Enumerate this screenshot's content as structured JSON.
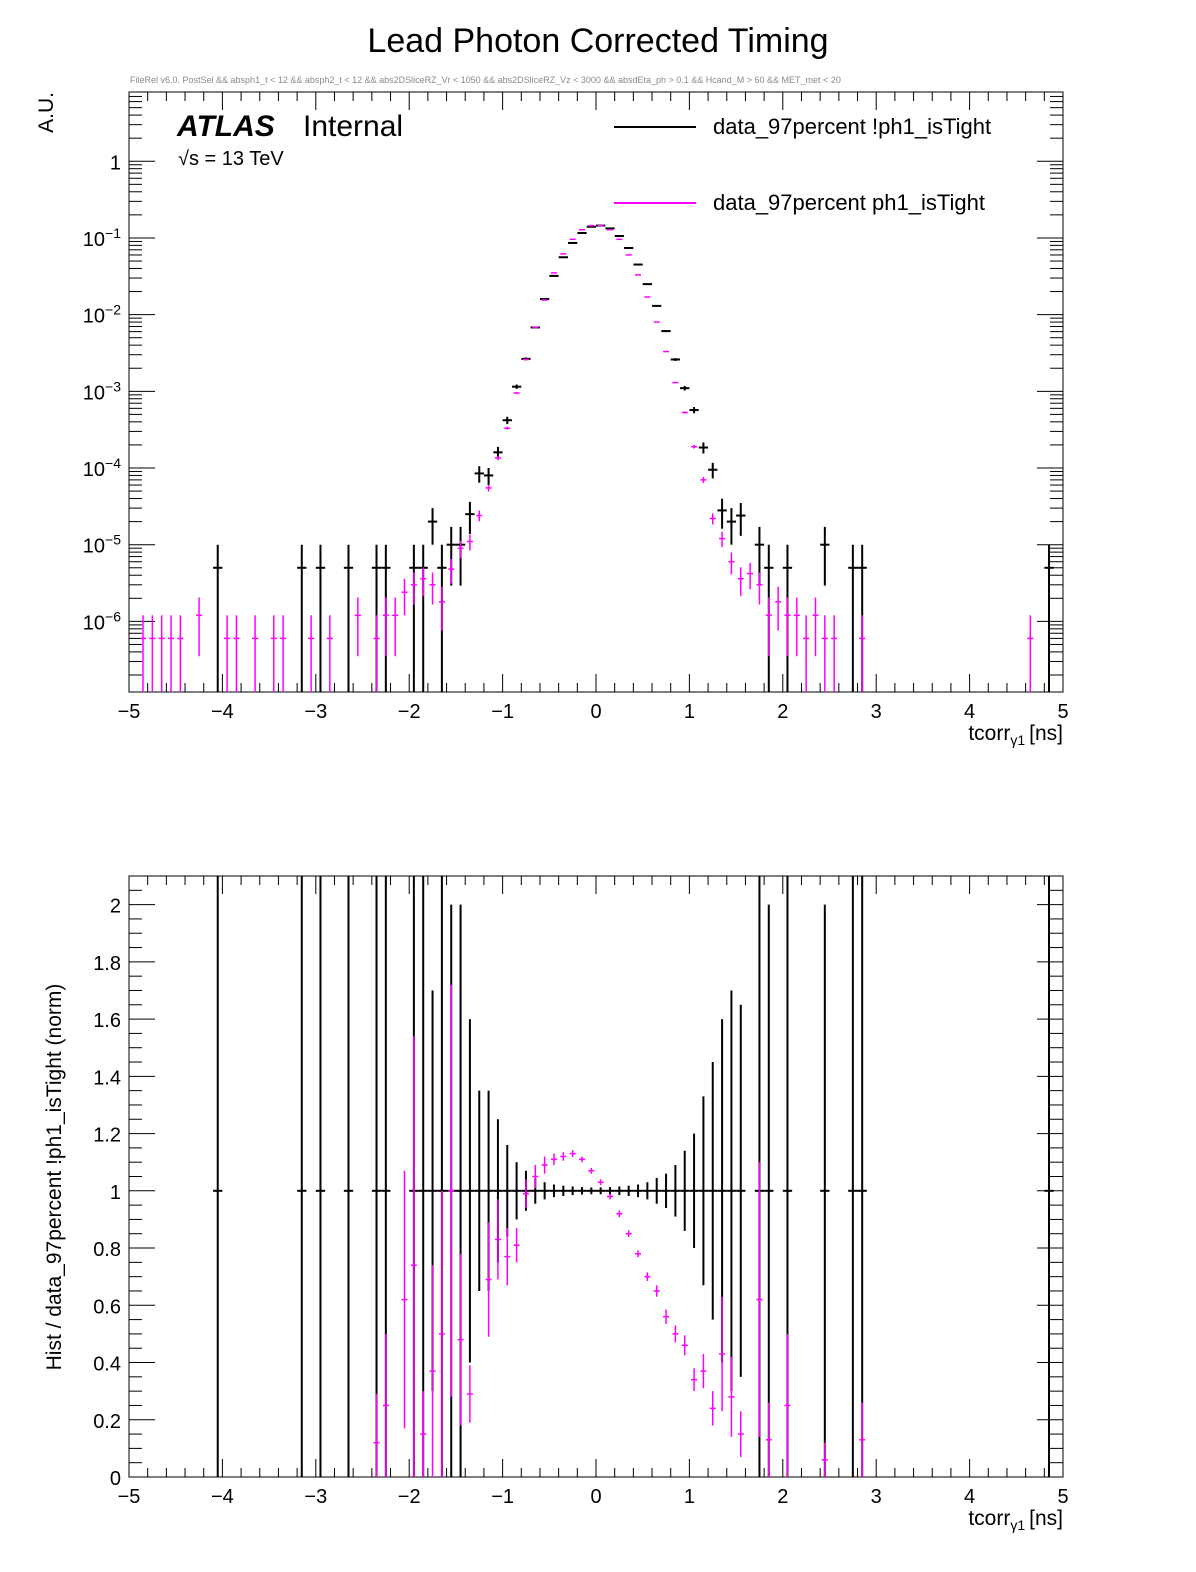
{
  "page": {
    "title": "Lead Photon Corrected Timing",
    "cuts": "FileRel v6.0. PostSel &&  absph1_t < 12 && absph2_t < 12 && abs2DSliceRZ_Vr < 1050 && abs2DSliceRZ_Vz < 3000 && absdEta_ph > 0.1 && Hcand_M > 60 && MET_met < 20",
    "atlas_label": "ATLAS",
    "internal_label": "Internal",
    "energy_label": "√s = 13 TeV"
  },
  "colors": {
    "black_series": "#000000",
    "magenta_series": "#ff00ff"
  },
  "chart_data": [
    {
      "type": "scatter",
      "title": "Lead Photon Corrected Timing",
      "xlabel": "tcorr",
      "xlabel_sub": "γ1",
      "xlabel_unit": "[ns]",
      "ylabel": "A.U.",
      "log_y": true,
      "xlim": [
        -5,
        5
      ],
      "ylim": [
        1.2e-07,
        8
      ],
      "xticks": [
        "−5",
        "−4",
        "−3",
        "−2",
        "−1",
        "0",
        "1",
        "2",
        "3",
        "4",
        "5"
      ],
      "yticks": [
        {
          "value": 1,
          "base": "1",
          "exp": ""
        },
        {
          "value": 0.1,
          "base": "10",
          "exp": "−1"
        },
        {
          "value": 0.01,
          "base": "10",
          "exp": "−2"
        },
        {
          "value": 0.001,
          "base": "10",
          "exp": "−3"
        },
        {
          "value": 0.0001,
          "base": "10",
          "exp": "−4"
        },
        {
          "value": 1e-05,
          "base": "10",
          "exp": "−5"
        },
        {
          "value": 1e-06,
          "base": "10",
          "exp": "−6"
        }
      ],
      "legend_position": "top-right",
      "series": [
        {
          "name": "data_97percent !ph1_isTight",
          "color": "#000000",
          "points": [
            [
              -4.05,
              5e-06
            ],
            [
              -3.15,
              5e-06
            ],
            [
              -2.95,
              5e-06
            ],
            [
              -2.65,
              5e-06
            ],
            [
              -2.35,
              5e-06
            ],
            [
              -2.25,
              5e-06
            ],
            [
              -1.95,
              5e-06
            ],
            [
              -1.85,
              5e-06
            ],
            [
              -1.75,
              2e-05
            ],
            [
              -1.65,
              5e-06
            ],
            [
              -1.55,
              1e-05
            ],
            [
              -1.45,
              1e-05
            ],
            [
              -1.35,
              2.5e-05
            ],
            [
              -1.25,
              8.5e-05
            ],
            [
              -1.15,
              8e-05
            ],
            [
              -1.05,
              0.00016
            ],
            [
              -0.95,
              0.00042
            ],
            [
              -0.85,
              0.00115
            ],
            [
              -0.75,
              0.00265
            ],
            [
              -0.65,
              0.0068
            ],
            [
              -0.55,
              0.016
            ],
            [
              -0.45,
              0.032
            ],
            [
              -0.35,
              0.056
            ],
            [
              -0.25,
              0.086
            ],
            [
              -0.15,
              0.116
            ],
            [
              -0.05,
              0.14
            ],
            [
              0.05,
              0.145
            ],
            [
              0.15,
              0.133
            ],
            [
              0.25,
              0.106
            ],
            [
              0.35,
              0.074
            ],
            [
              0.45,
              0.045
            ],
            [
              0.55,
              0.025
            ],
            [
              0.65,
              0.013
            ],
            [
              0.75,
              0.0061
            ],
            [
              0.85,
              0.0026
            ],
            [
              0.95,
              0.0011
            ],
            [
              1.05,
              0.00057
            ],
            [
              1.15,
              0.000185
            ],
            [
              1.25,
              9.5e-05
            ],
            [
              1.35,
              2.8e-05
            ],
            [
              1.45,
              2e-05
            ],
            [
              1.55,
              2.4e-05
            ],
            [
              1.75,
              1e-05
            ],
            [
              1.85,
              5e-06
            ],
            [
              2.05,
              5e-06
            ],
            [
              2.45,
              1e-05
            ],
            [
              2.75,
              5e-06
            ],
            [
              2.85,
              5e-06
            ],
            [
              4.85,
              5e-06
            ]
          ]
        },
        {
          "name": "data_97percent ph1_isTight",
          "color": "#ff00ff",
          "points": [
            [
              -4.85,
              6e-07
            ],
            [
              -4.75,
              6e-07
            ],
            [
              -4.65,
              6e-07
            ],
            [
              -4.55,
              6e-07
            ],
            [
              -4.45,
              6e-07
            ],
            [
              -4.25,
              1.2e-06
            ],
            [
              -3.95,
              6e-07
            ],
            [
              -3.85,
              6e-07
            ],
            [
              -3.65,
              6e-07
            ],
            [
              -3.45,
              6e-07
            ],
            [
              -3.35,
              6e-07
            ],
            [
              -3.05,
              6e-07
            ],
            [
              -2.85,
              6e-07
            ],
            [
              -2.55,
              1.2e-06
            ],
            [
              -2.35,
              6e-07
            ],
            [
              -2.25,
              1.2e-06
            ],
            [
              -2.15,
              1.2e-06
            ],
            [
              -2.05,
              2.4e-06
            ],
            [
              -1.95,
              3e-06
            ],
            [
              -1.85,
              3.6e-06
            ],
            [
              -1.75,
              3e-06
            ],
            [
              -1.65,
              1.8e-06
            ],
            [
              -1.55,
              4.8e-06
            ],
            [
              -1.45,
              9e-06
            ],
            [
              -1.35,
              1.1e-05
            ],
            [
              -1.25,
              2.4e-05
            ],
            [
              -1.15,
              5.5e-05
            ],
            [
              -1.05,
              0.000135
            ],
            [
              -0.95,
              0.00033
            ],
            [
              -0.85,
              0.00095
            ],
            [
              -0.75,
              0.0026
            ],
            [
              -0.65,
              0.0068
            ],
            [
              -0.55,
              0.0155
            ],
            [
              -0.45,
              0.035
            ],
            [
              -0.35,
              0.062
            ],
            [
              -0.25,
              0.096
            ],
            [
              -0.15,
              0.128
            ],
            [
              -0.05,
              0.145
            ],
            [
              0.05,
              0.145
            ],
            [
              0.15,
              0.128
            ],
            [
              0.25,
              0.096
            ],
            [
              0.35,
              0.06
            ],
            [
              0.45,
              0.033
            ],
            [
              0.55,
              0.017
            ],
            [
              0.65,
              0.008
            ],
            [
              0.75,
              0.0033
            ],
            [
              0.85,
              0.0013
            ],
            [
              0.95,
              0.00053
            ],
            [
              1.05,
              0.00019
            ],
            [
              1.15,
              7e-05
            ],
            [
              1.25,
              2.2e-05
            ],
            [
              1.35,
              1.2e-05
            ],
            [
              1.45,
              6e-06
            ],
            [
              1.55,
              3.6e-06
            ],
            [
              1.65,
              4.2e-06
            ],
            [
              1.75,
              3e-06
            ],
            [
              1.85,
              1.2e-06
            ],
            [
              1.95,
              1.8e-06
            ],
            [
              2.05,
              1.2e-06
            ],
            [
              2.15,
              1.2e-06
            ],
            [
              2.25,
              6e-07
            ],
            [
              2.35,
              1.2e-06
            ],
            [
              2.45,
              6e-07
            ],
            [
              2.55,
              6e-07
            ],
            [
              2.85,
              6e-07
            ],
            [
              4.65,
              6e-07
            ]
          ]
        }
      ]
    },
    {
      "type": "scatter",
      "xlabel": "tcorr",
      "xlabel_sub": "γ1",
      "xlabel_unit": "[ns]",
      "ylabel": "Hist / data_97percent !ph1_isTight (norm)",
      "log_y": false,
      "xlim": [
        -5,
        5
      ],
      "ylim": [
        0,
        2.1
      ],
      "xticks": [
        "−5",
        "−4",
        "−3",
        "−2",
        "−1",
        "0",
        "1",
        "2",
        "3",
        "4",
        "5"
      ],
      "yticks": [
        {
          "value": 0,
          "label": "0"
        },
        {
          "value": 0.2,
          "label": "0.2"
        },
        {
          "value": 0.4,
          "label": "0.4"
        },
        {
          "value": 0.6,
          "label": "0.6"
        },
        {
          "value": 0.8,
          "label": "0.8"
        },
        {
          "value": 1,
          "label": "1"
        },
        {
          "value": 1.2,
          "label": "1.2"
        },
        {
          "value": 1.4,
          "label": "1.4"
        },
        {
          "value": 1.6,
          "label": "1.6"
        },
        {
          "value": 1.8,
          "label": "1.8"
        },
        {
          "value": 2,
          "label": "2"
        }
      ],
      "series": [
        {
          "name": "data_97percent !ph1_isTight",
          "color": "#000000",
          "points": [
            [
              -4.05,
              1,
              1.5
            ],
            [
              -3.15,
              1,
              1.5
            ],
            [
              -2.95,
              1,
              1.5
            ],
            [
              -2.65,
              1,
              1.5
            ],
            [
              -2.35,
              1,
              1.5
            ],
            [
              -2.25,
              1,
              1.5
            ],
            [
              -1.95,
              1,
              1.5
            ],
            [
              -1.85,
              1,
              1.5
            ],
            [
              -1.75,
              1,
              0.7
            ],
            [
              -1.65,
              1,
              1.5
            ],
            [
              -1.55,
              1,
              1.0
            ],
            [
              -1.45,
              1,
              1.0
            ],
            [
              -1.35,
              1,
              0.6
            ],
            [
              -1.25,
              1,
              0.35
            ],
            [
              -1.15,
              1,
              0.35
            ],
            [
              -1.05,
              1,
              0.25
            ],
            [
              -0.95,
              1,
              0.16
            ],
            [
              -0.85,
              1,
              0.1
            ],
            [
              -0.75,
              1,
              0.07
            ],
            [
              -0.65,
              1,
              0.045
            ],
            [
              -0.55,
              1,
              0.03
            ],
            [
              -0.45,
              1,
              0.022
            ],
            [
              -0.35,
              1,
              0.018
            ],
            [
              -0.25,
              1,
              0.015
            ],
            [
              -0.15,
              1,
              0.013
            ],
            [
              -0.05,
              1,
              0.012
            ],
            [
              0.05,
              1,
              0.012
            ],
            [
              0.15,
              1,
              0.013
            ],
            [
              0.25,
              1,
              0.015
            ],
            [
              0.35,
              1,
              0.018
            ],
            [
              0.45,
              1,
              0.022
            ],
            [
              0.55,
              1,
              0.03
            ],
            [
              0.65,
              1,
              0.045
            ],
            [
              0.75,
              1,
              0.06
            ],
            [
              0.85,
              1,
              0.09
            ],
            [
              0.95,
              1,
              0.14
            ],
            [
              1.05,
              1,
              0.2
            ],
            [
              1.15,
              1,
              0.33
            ],
            [
              1.25,
              1,
              0.45
            ],
            [
              1.35,
              1,
              0.6
            ],
            [
              1.45,
              1,
              0.7
            ],
            [
              1.55,
              1,
              0.65
            ],
            [
              1.75,
              1,
              1.5
            ],
            [
              1.85,
              1,
              1.0
            ],
            [
              2.05,
              1,
              1.5
            ],
            [
              2.45,
              1,
              1.0
            ],
            [
              2.75,
              1,
              1.5
            ],
            [
              2.85,
              1,
              1.5
            ],
            [
              4.85,
              1,
              1.5
            ]
          ]
        },
        {
          "name": "data_97percent ph1_isTight",
          "color": "#ff00ff",
          "points": [
            [
              -2.35,
              0.12,
              0.17
            ],
            [
              -2.25,
              0.25,
              0.25
            ],
            [
              -2.05,
              0.62,
              0.45
            ],
            [
              -1.95,
              0.74,
              0.8
            ],
            [
              -1.85,
              0.15,
              0.15
            ],
            [
              -1.75,
              0.37,
              0.37
            ],
            [
              -1.65,
              0.5,
              0.5
            ],
            [
              -1.55,
              1.0,
              0.72
            ],
            [
              -1.45,
              0.48,
              0.3
            ],
            [
              -1.35,
              0.29,
              0.1
            ],
            [
              -1.15,
              0.69,
              0.2
            ],
            [
              -1.05,
              0.83,
              0.14
            ],
            [
              -0.95,
              0.77,
              0.1
            ],
            [
              -0.85,
              0.81,
              0.06
            ],
            [
              -0.75,
              0.99,
              0.05
            ],
            [
              -0.65,
              1.05,
              0.04
            ],
            [
              -0.55,
              1.09,
              0.03
            ],
            [
              -0.45,
              1.11,
              0.02
            ],
            [
              -0.35,
              1.12,
              0.015
            ],
            [
              -0.25,
              1.13,
              0.012
            ],
            [
              -0.15,
              1.11,
              0.01
            ],
            [
              -0.05,
              1.07,
              0.01
            ],
            [
              0.05,
              1.03,
              0.01
            ],
            [
              0.15,
              0.98,
              0.01
            ],
            [
              0.25,
              0.92,
              0.012
            ],
            [
              0.35,
              0.85,
              0.012
            ],
            [
              0.45,
              0.78,
              0.012
            ],
            [
              0.55,
              0.7,
              0.015
            ],
            [
              0.65,
              0.65,
              0.02
            ],
            [
              0.75,
              0.56,
              0.025
            ],
            [
              0.85,
              0.5,
              0.03
            ],
            [
              0.95,
              0.46,
              0.035
            ],
            [
              1.05,
              0.34,
              0.04
            ],
            [
              1.15,
              0.37,
              0.06
            ],
            [
              1.25,
              0.24,
              0.06
            ],
            [
              1.35,
              0.43,
              0.2
            ],
            [
              1.45,
              0.28,
              0.14
            ],
            [
              1.55,
              0.15,
              0.08
            ],
            [
              1.75,
              0.62,
              0.48
            ],
            [
              1.85,
              0.13,
              0.13
            ],
            [
              2.05,
              0.25,
              0.25
            ],
            [
              2.45,
              0.06,
              0.06
            ],
            [
              2.85,
              0.13,
              0.13
            ]
          ]
        }
      ]
    }
  ]
}
